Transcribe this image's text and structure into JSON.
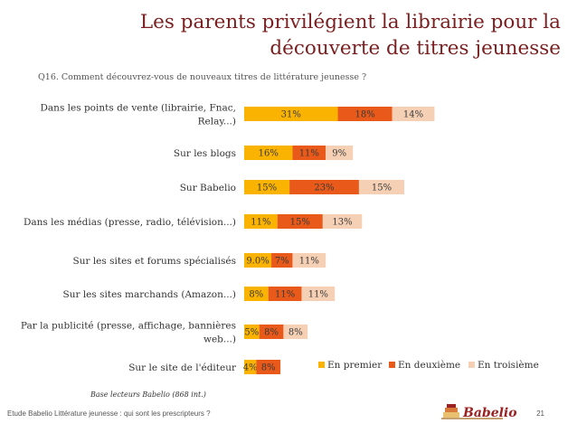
{
  "title": "Les parents privilégient la librairie pour la découverte de titres jeunesse",
  "question": "Q16. Comment découvrez-vous de nouveaux titres de littérature jeunesse ?",
  "base_note": "Base lecteurs Babelio (868 int.)",
  "footer": "Etude Babelio Littérature jeunesse : qui sont les prescripteurs ?",
  "page_number": "21",
  "logo_text": "Babelio",
  "colors": {
    "premier": "#f9b300",
    "deuxieme": "#e8591a",
    "troisieme": "#f5d0b5",
    "title": "#7a1f1f"
  },
  "chart_data": {
    "type": "bar",
    "orientation": "horizontal",
    "stacked": true,
    "categories": [
      "Dans les points de vente (librairie, Fnac, Relay...)",
      "Sur les blogs",
      "Sur Babelio",
      "Dans les médias (presse, radio, télévision...)",
      "Sur les sites et forums spécialisés",
      "Sur les sites marchands (Amazon...)",
      "Par la publicité (presse, affichage, bannières web...)",
      "Sur le site de l'éditeur"
    ],
    "category_lines": [
      [
        "Dans les points de vente (librairie, Fnac,",
        "Relay...)"
      ],
      [
        "Sur les blogs"
      ],
      [
        "Sur Babelio"
      ],
      [
        "Dans les médias (presse, radio, télévision...)"
      ],
      [
        "Sur les sites et forums spécialisés"
      ],
      [
        "Sur les sites marchands (Amazon...)"
      ],
      [
        "Par la publicité (presse, affichage, bannières",
        "web...)"
      ],
      [
        "Sur le site de l'éditeur"
      ]
    ],
    "series": [
      {
        "name": "En premier",
        "color": "#f9b300",
        "values": [
          31,
          16,
          15,
          11,
          9.0,
          8,
          5,
          4
        ],
        "labels": [
          "31%",
          "16%",
          "15%",
          "11%",
          "9.0%",
          "8%",
          "5%",
          "4%"
        ]
      },
      {
        "name": "En deuxième",
        "color": "#e8591a",
        "values": [
          18,
          11,
          23,
          15,
          7,
          11,
          8,
          8
        ],
        "labels": [
          "18%",
          "11%",
          "23%",
          "15%",
          "7%",
          "11%",
          "8%",
          "8%"
        ]
      },
      {
        "name": "En troisième",
        "color": "#f5d0b5",
        "values": [
          14,
          9,
          15,
          13,
          11,
          11,
          8,
          0
        ],
        "labels": [
          "14%",
          "9%",
          "15%",
          "13%",
          "11%",
          "11%",
          "8%",
          ""
        ]
      }
    ],
    "xlim": [
      0,
      65
    ],
    "legend": "bottom-right"
  }
}
